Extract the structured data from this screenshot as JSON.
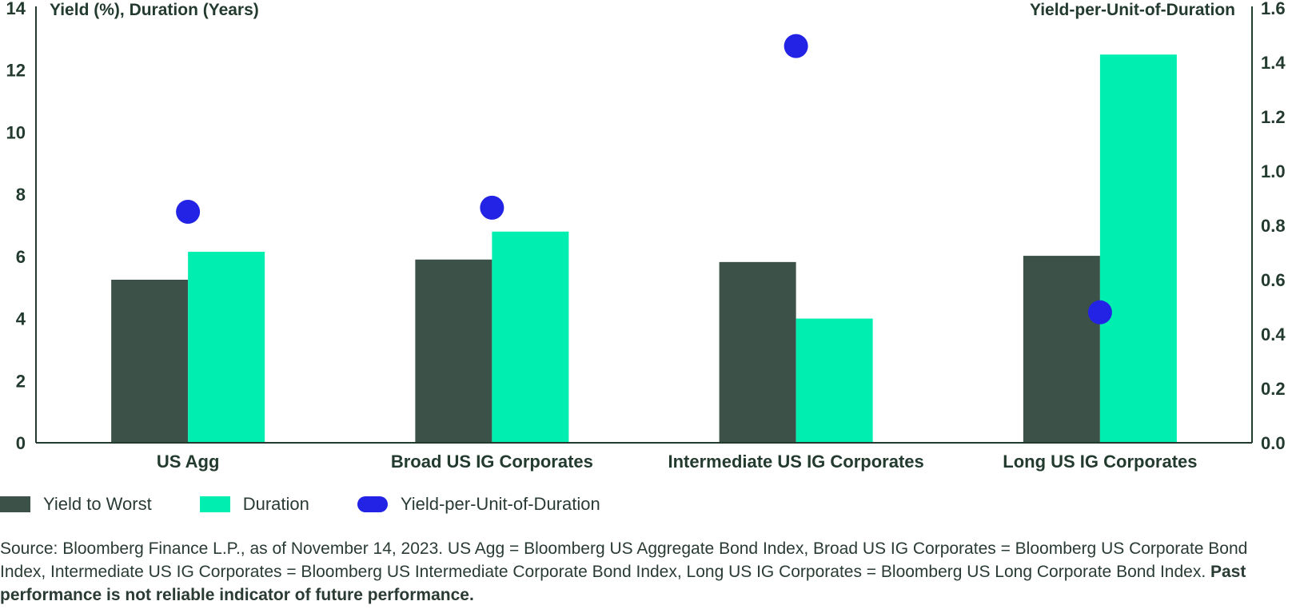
{
  "chart_data": {
    "type": "bar",
    "left_axis_title": "Yield (%), Duration (Years)",
    "right_axis_title": "Yield-per-Unit-of-Duration",
    "left_ylim": [
      0,
      14
    ],
    "right_ylim": [
      0,
      1.6
    ],
    "left_ticks": [
      "0",
      "2",
      "4",
      "6",
      "8",
      "10",
      "12",
      "14"
    ],
    "right_ticks": [
      "0.0",
      "0.2",
      "0.4",
      "0.6",
      "0.8",
      "1.0",
      "1.2",
      "1.4",
      "1.6"
    ],
    "categories": [
      "US Agg",
      "Broad US IG Corporates",
      "Intermediate US IG Corporates",
      "Long US IG Corporates"
    ],
    "series": [
      {
        "name": "Yield to Worst",
        "type": "bar",
        "axis": "left",
        "color": "#3c5148",
        "values": [
          5.25,
          5.9,
          5.82,
          6.02
        ]
      },
      {
        "name": "Duration",
        "type": "bar",
        "axis": "left",
        "color": "#00eeb0",
        "values": [
          6.15,
          6.8,
          4.0,
          12.5
        ]
      },
      {
        "name": "Yield-per-Unit-of-Duration",
        "type": "scatter",
        "axis": "right",
        "color": "#2323e6",
        "values": [
          0.85,
          0.865,
          1.46,
          0.48
        ]
      }
    ],
    "grid": false,
    "legend_position": "bottom-left"
  },
  "legend": {
    "items": [
      {
        "label": "Yield to Worst",
        "color": "#3c5148"
      },
      {
        "label": "Duration",
        "color": "#00eeb0"
      },
      {
        "label": "Yield-per-Unit-of-Duration",
        "color": "#2323e6"
      }
    ]
  },
  "source": {
    "text": "Source: Bloomberg Finance L.P., as of November 14, 2023. US Agg = Bloomberg US Aggregate Bond Index, Broad US IG Corporates = Bloomberg US Corporate Bond Index, Intermediate US IG Corporates = Bloomberg US Intermediate Corporate Bond Index, Long US IG Corporates = Bloomberg US Long Corporate Bond Index. ",
    "bold": "Past performance is not reliable indicator of future performance."
  }
}
